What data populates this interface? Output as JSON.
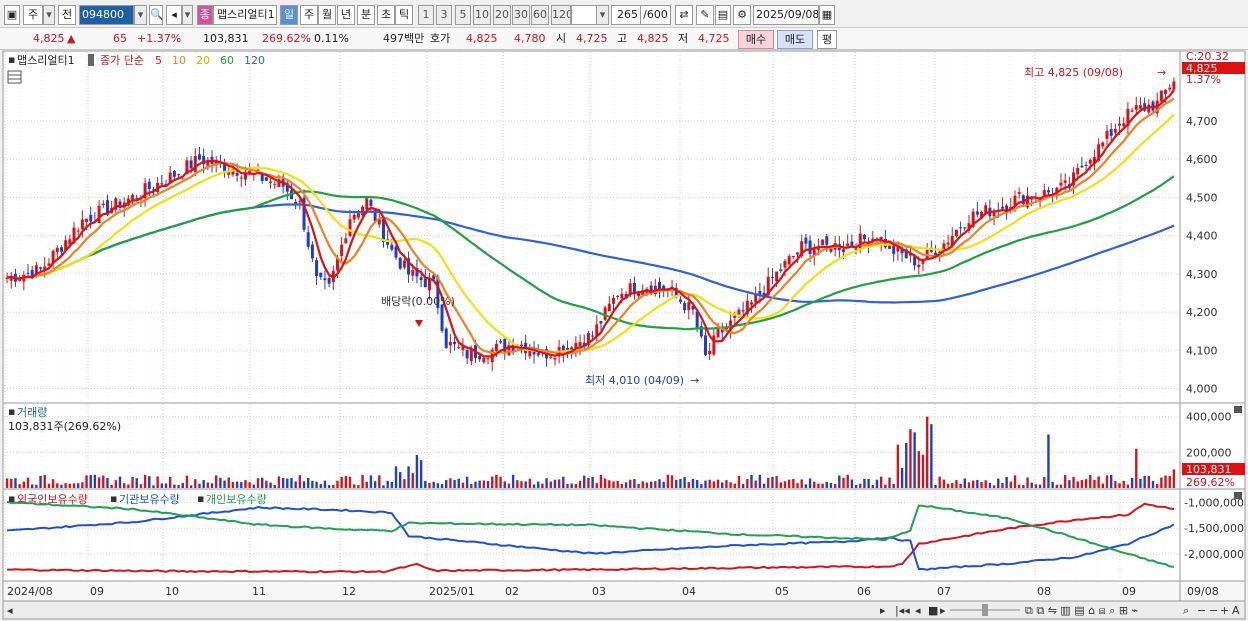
{
  "toolbar": {
    "market_type": "주",
    "prev_label": "전",
    "stock_code": "094800",
    "stock_tag": "종",
    "stock_name": "맵스리얼티1",
    "periods": [
      "일",
      "주",
      "월",
      "년",
      "분",
      "초",
      "틱"
    ],
    "active_period": "일",
    "intervals": [
      "1",
      "3",
      "5",
      "10",
      "20",
      "30",
      "60",
      "120"
    ],
    "count": "265",
    "count_max": "/600",
    "date": "2025/09/08"
  },
  "quote": {
    "price": "4,825",
    "change_arrow": "▲",
    "change": "65",
    "change_rate": "+1.37%",
    "volume": "103,831",
    "volume_ratio": "269.62%",
    "turnover": "0.11%",
    "amount": "497백만",
    "bid_ask_label": "호가",
    "ask": "4,825",
    "bid": "4,780",
    "open_label": "시",
    "open": "4,725",
    "high_label": "고",
    "high": "4,825",
    "low_label": "저",
    "low": "4,725",
    "buy_label": "매수",
    "sell_label": "매도",
    "extra_label": "평"
  },
  "price_panel": {
    "title": "맵스리얼티1",
    "legend_prefix": "종가 단순",
    "ma": [
      {
        "period": "5",
        "color": "#e01010"
      },
      {
        "period": "10",
        "color": "#f08020"
      },
      {
        "period": "20",
        "color": "#f0e010"
      },
      {
        "period": "60",
        "color": "#20a040"
      },
      {
        "period": "120",
        "color": "#3060e0"
      }
    ],
    "y_ticks": [
      "4,700",
      "4,600",
      "4,500",
      "4,400",
      "4,300",
      "4,200",
      "4,100",
      "4,000"
    ],
    "top_tick": "C:20.32",
    "price_badge": "4,825",
    "price_change_label": "1.37%",
    "high_annotation": "최고 4,825 (09/08)",
    "low_annotation": "최저 4,010 (04/09)",
    "dividend_annotation": "배당락(0.00%)"
  },
  "volume_panel": {
    "title": "거래량",
    "value_label": "103,831주(269.62%)",
    "y_ticks": [
      "400,000",
      "200,000"
    ],
    "volume_badge": "103,831",
    "ratio_badge": "269.62%"
  },
  "holdings_panel": {
    "legend": [
      {
        "label": "외국인보유수량",
        "color": "#d3141c"
      },
      {
        "label": "기관보유수량",
        "color": "#2050d0"
      },
      {
        "label": "개인보유수량",
        "color": "#20a050"
      }
    ],
    "y_ticks": [
      "-1,000,000",
      "-1,500,000",
      "-2,000,000"
    ]
  },
  "x_axis": {
    "labels": [
      "2024/08",
      "09",
      "10",
      "11",
      "12",
      "2025/01",
      "02",
      "03",
      "04",
      "05",
      "06",
      "07",
      "08",
      "09"
    ],
    "right_label": "09/08"
  },
  "chart_data": {
    "type": "candlestick",
    "price_axis": {
      "ylim": [
        3970,
        4870
      ]
    },
    "volume_axis": {
      "ylim": [
        0,
        460000
      ]
    },
    "holdings_axis": {
      "ylim": [
        -2500000,
        -800000
      ]
    }
  }
}
